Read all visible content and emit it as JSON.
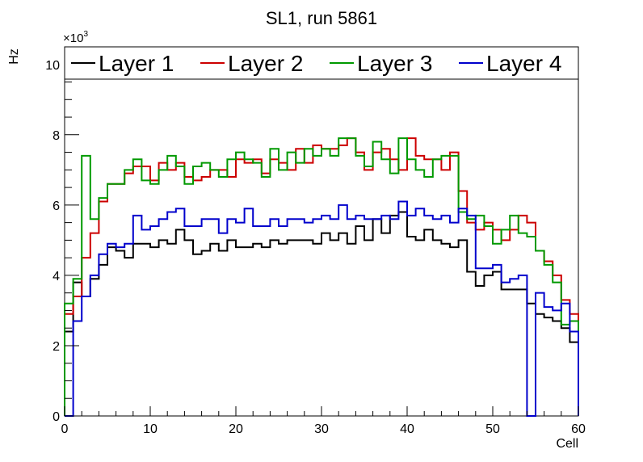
{
  "chart_data": {
    "type": "step-histogram",
    "title": "SL1, run 5861",
    "xlabel": "Cell",
    "ylabel": "Hz",
    "y_multiplier_base": "×10",
    "y_multiplier_exp": "3",
    "xlim": [
      0,
      60
    ],
    "ylim": [
      0,
      10.5
    ],
    "x_ticks": [
      0,
      10,
      20,
      30,
      40,
      50,
      60
    ],
    "y_ticks": [
      0,
      2,
      4,
      6,
      8,
      10
    ],
    "grid": false,
    "legend_placement": "top",
    "series": [
      {
        "name": "Layer 1",
        "color": "#000000",
        "values": [
          2.4,
          3.8,
          3.4,
          3.9,
          4.3,
          4.8,
          4.7,
          4.5,
          4.9,
          4.9,
          4.8,
          5.0,
          4.9,
          5.3,
          5.0,
          4.6,
          4.7,
          4.9,
          4.7,
          5.0,
          4.8,
          4.8,
          4.9,
          4.8,
          5.0,
          4.9,
          5.0,
          5.0,
          5.0,
          4.9,
          5.2,
          5.0,
          5.2,
          4.9,
          5.4,
          5.0,
          5.6,
          5.2,
          5.7,
          5.8,
          5.1,
          5.0,
          5.3,
          5.0,
          4.9,
          4.8,
          5.0,
          4.1,
          3.7,
          4.0,
          4.1,
          3.6,
          3.6,
          3.6,
          3.2,
          2.9,
          2.8,
          2.7,
          2.5,
          2.1
        ]
      },
      {
        "name": "Layer 2",
        "color": "#cc0000",
        "values": [
          2.9,
          3.4,
          4.5,
          5.2,
          6.1,
          6.6,
          6.6,
          6.9,
          7.1,
          7.1,
          6.7,
          7.2,
          7.0,
          7.2,
          6.8,
          6.7,
          6.8,
          7.0,
          7.0,
          6.8,
          7.3,
          7.2,
          7.3,
          6.9,
          7.3,
          7.2,
          7.0,
          7.6,
          7.2,
          7.7,
          7.6,
          7.6,
          7.7,
          7.9,
          7.5,
          7.0,
          7.5,
          7.6,
          7.3,
          7.0,
          7.9,
          7.4,
          7.3,
          7.3,
          7.0,
          7.5,
          6.4,
          5.5,
          5.3,
          5.5,
          5.3,
          5.0,
          5.3,
          5.7,
          5.5,
          4.7,
          4.4,
          4.0,
          3.3,
          2.9
        ]
      },
      {
        "name": "Layer 3",
        "color": "#009900",
        "values": [
          3.2,
          3.9,
          7.4,
          5.6,
          6.2,
          6.6,
          6.6,
          7.0,
          7.3,
          6.7,
          6.6,
          7.0,
          7.4,
          7.1,
          6.6,
          7.1,
          7.2,
          7.0,
          6.8,
          7.3,
          7.5,
          7.3,
          7.2,
          6.8,
          7.6,
          7.0,
          7.5,
          7.2,
          7.6,
          7.4,
          7.6,
          7.4,
          7.9,
          7.9,
          7.4,
          7.1,
          7.8,
          7.3,
          6.9,
          7.9,
          7.3,
          7.0,
          6.8,
          7.3,
          7.4,
          7.4,
          5.8,
          5.6,
          5.7,
          5.4,
          4.9,
          5.3,
          5.7,
          5.2,
          5.1,
          4.7,
          4.3,
          3.8,
          2.6,
          2.7
        ]
      },
      {
        "name": "Layer 4",
        "color": "#0000cc",
        "values": [
          0.0,
          2.7,
          3.4,
          4.0,
          4.6,
          4.9,
          4.8,
          4.9,
          5.7,
          5.3,
          5.4,
          5.6,
          5.8,
          5.9,
          5.4,
          5.4,
          5.6,
          5.6,
          5.2,
          5.6,
          5.5,
          5.9,
          5.4,
          5.4,
          5.6,
          5.4,
          5.6,
          5.6,
          5.5,
          5.6,
          5.7,
          5.6,
          6.0,
          5.6,
          5.7,
          5.6,
          5.6,
          5.7,
          5.6,
          6.1,
          5.7,
          5.9,
          5.7,
          5.6,
          5.7,
          5.5,
          5.9,
          5.7,
          4.2,
          4.2,
          4.3,
          3.8,
          3.9,
          4.0,
          0.0,
          3.5,
          3.1,
          3.0,
          3.2,
          2.4
        ]
      }
    ]
  }
}
